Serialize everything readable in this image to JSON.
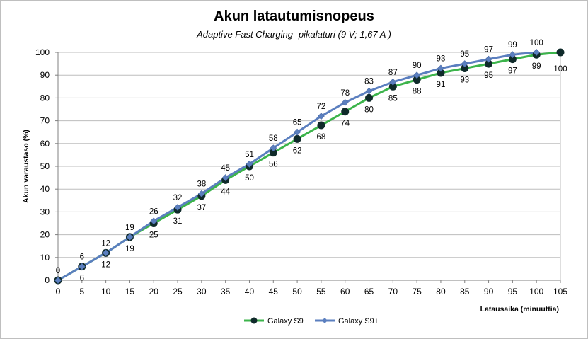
{
  "chart_data": {
    "type": "line",
    "title": "Akun latautumisnopeus",
    "subtitle": "Adaptive Fast Charging -pikalaturi (9 V; 1,67 A )",
    "xlabel": "Latausaika  (minuuttia)",
    "ylabel": "Akun varaustaso  (%)",
    "xlim": [
      0,
      105
    ],
    "ylim": [
      0,
      100
    ],
    "x_ticks": [
      0,
      5,
      10,
      15,
      20,
      25,
      30,
      35,
      40,
      45,
      50,
      55,
      60,
      65,
      70,
      75,
      80,
      85,
      90,
      95,
      100,
      105
    ],
    "y_ticks": [
      0,
      10,
      20,
      30,
      40,
      50,
      60,
      70,
      80,
      90,
      100
    ],
    "grid": "horizontal",
    "legend_position": "bottom",
    "series": [
      {
        "name": "Galaxy S9",
        "color": "#3cb44b",
        "marker_color": "#0f2a2a",
        "marker": "circle",
        "x": [
          0,
          5,
          10,
          15,
          20,
          25,
          30,
          35,
          40,
          45,
          50,
          55,
          60,
          65,
          70,
          75,
          80,
          85,
          90,
          95,
          100,
          105
        ],
        "values": [
          0,
          6,
          12,
          19,
          25,
          31,
          37,
          44,
          50,
          56,
          62,
          68,
          74,
          80,
          85,
          88,
          91,
          93,
          95,
          97,
          99,
          100
        ]
      },
      {
        "name": "Galaxy S9+",
        "color": "#5b7fbf",
        "marker_color": "#5b7fbf",
        "marker": "diamond",
        "x": [
          0,
          5,
          10,
          15,
          20,
          25,
          30,
          35,
          40,
          45,
          50,
          55,
          60,
          65,
          70,
          75,
          80,
          85,
          90,
          95,
          100
        ],
        "values": [
          0,
          6,
          12,
          19,
          26,
          32,
          38,
          45,
          51,
          58,
          65,
          72,
          78,
          83,
          87,
          90,
          93,
          95,
          97,
          99,
          100
        ]
      }
    ]
  }
}
